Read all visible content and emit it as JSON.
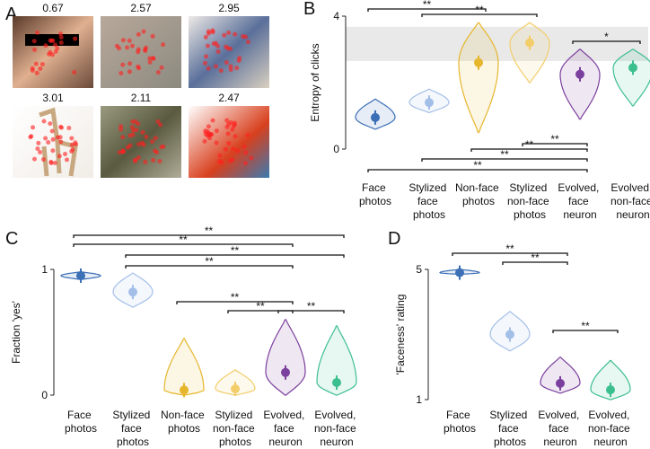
{
  "images_panel": {
    "panel_label": "A",
    "entropies": [
      0.67,
      2.57,
      2.95,
      3.01,
      2.11,
      2.47
    ]
  },
  "chart_data": [
    {
      "type": "violin",
      "panel_label": "B",
      "ylabel": "Entropy of clicks",
      "categories": [
        "Face photos",
        "Stylized face photos",
        "Non-face photos",
        "Stylized non-face photos",
        "Evolved, face neuron",
        "Evolved, non-face neuron"
      ],
      "colors": [
        "#3b6fb6",
        "#a3bfe8",
        "#e6b62c",
        "#f2cd6a",
        "#7b3f9e",
        "#3cbf8f"
      ],
      "values": [
        0.95,
        1.4,
        2.6,
        3.2,
        2.25,
        2.45
      ],
      "lows": [
        0.6,
        1.1,
        0.5,
        2.0,
        0.9,
        1.3
      ],
      "highs": [
        1.5,
        1.8,
        3.8,
        3.8,
        3.0,
        3.0
      ],
      "shaded_band": [
        2.65,
        3.68
      ],
      "ylim": [
        0,
        4
      ],
      "yticks": [
        0,
        4
      ],
      "annotations": [
        {
          "text": "**",
          "from": "Face photos",
          "to": "Non-face photos"
        },
        {
          "text": "**",
          "from": "Stylized face photos",
          "to": "Stylized non-face photos"
        },
        {
          "text": "*",
          "from": "Evolved, face neuron",
          "to": "Evolved, non-face neuron"
        },
        {
          "text": "**",
          "from": "Stylized non-face photos",
          "to": "Evolved, face neuron"
        },
        {
          "text": "**",
          "from": "Non-face photos",
          "to": "Evolved, face neuron"
        },
        {
          "text": "**",
          "from": "Stylized face photos",
          "to": "Evolved, face neuron"
        },
        {
          "text": "**",
          "from": "Face photos",
          "to": "Evolved, face neuron"
        }
      ]
    },
    {
      "type": "violin",
      "panel_label": "C",
      "ylabel": "Fraction 'yes'",
      "categories": [
        "Face photos",
        "Stylized face photos",
        "Non-face photos",
        "Stylized non-face photos",
        "Evolved, face neuron",
        "Evolved, non-face neuron"
      ],
      "colors": [
        "#3b6fb6",
        "#a3bfe8",
        "#e6b62c",
        "#f2cd6a",
        "#7b3f9e",
        "#3cbf8f"
      ],
      "values": [
        0.95,
        0.82,
        0.04,
        0.05,
        0.18,
        0.1
      ],
      "lows": [
        0.92,
        0.7,
        0,
        0,
        0,
        0
      ],
      "highs": [
        0.98,
        0.97,
        0.45,
        0.2,
        0.6,
        0.55
      ],
      "ylim": [
        0,
        1
      ],
      "yticks": [
        0,
        1
      ],
      "annotations": [
        {
          "text": "**",
          "from": "Face photos",
          "to": "Evolved, non-face neuron"
        },
        {
          "text": "**",
          "from": "Face photos",
          "to": "Evolved, face neuron"
        },
        {
          "text": "**",
          "from": "Stylized face photos",
          "to": "Evolved, non-face neuron"
        },
        {
          "text": "**",
          "from": "Stylized face photos",
          "to": "Evolved, face neuron"
        },
        {
          "text": "**",
          "from": "Non-face photos",
          "to": "Evolved, face neuron"
        },
        {
          "text": "**",
          "from": "Stylized non-face photos",
          "to": "Evolved, face neuron"
        },
        {
          "text": "**",
          "from": "Evolved, face neuron",
          "to": "Evolved, non-face neuron"
        }
      ]
    },
    {
      "type": "violin",
      "panel_label": "D",
      "ylabel": "'Faceness' rating",
      "categories": [
        "Face photos",
        "Stylized face photos",
        "Evolved, face neuron",
        "Evolved, non-face neuron"
      ],
      "colors": [
        "#3b6fb6",
        "#a3bfe8",
        "#7b3f9e",
        "#3cbf8f"
      ],
      "values": [
        4.9,
        3.0,
        1.5,
        1.3
      ],
      "lows": [
        4.85,
        2.5,
        1.2,
        1.0
      ],
      "highs": [
        5.0,
        3.7,
        2.3,
        2.2
      ],
      "ylim": [
        1,
        5
      ],
      "yticks": [
        1,
        5
      ],
      "annotations": [
        {
          "text": "**",
          "from": "Face photos",
          "to": "Evolved, face neuron"
        },
        {
          "text": "**",
          "from": "Stylized face photos",
          "to": "Evolved, face neuron"
        },
        {
          "text": "**",
          "from": "Evolved, face neuron",
          "to": "Evolved, non-face neuron"
        }
      ]
    }
  ]
}
